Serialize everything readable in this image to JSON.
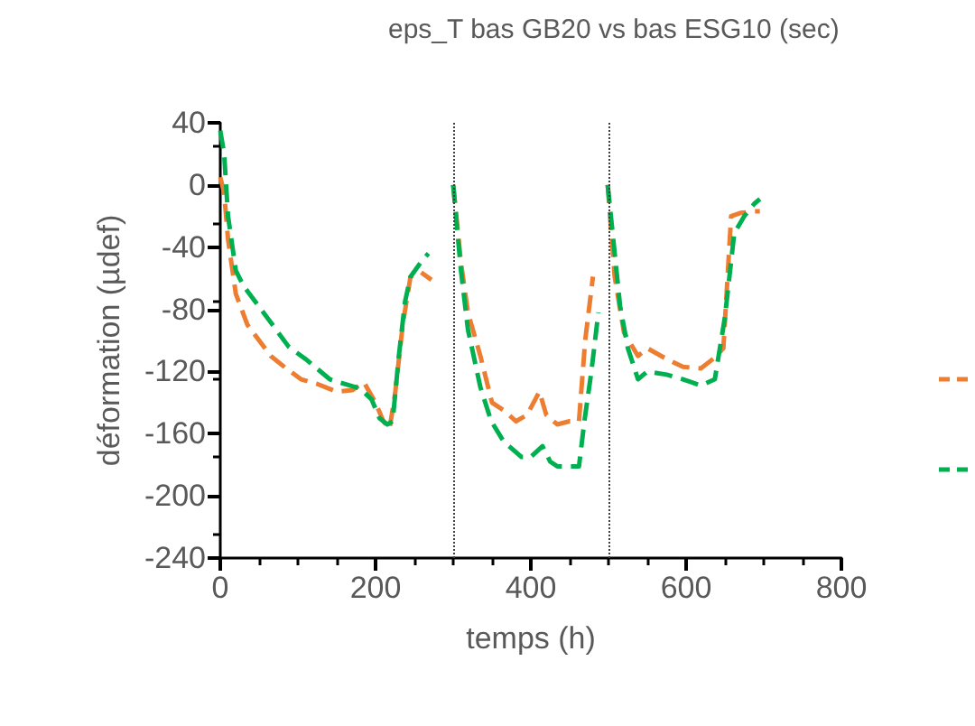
{
  "chart_data": {
    "type": "line",
    "title": "eps_T bas GB20 vs bas ESG10 (sec)",
    "xlabel": "temps (h)",
    "ylabel": "déformation (µdef)",
    "xlim": [
      0,
      800
    ],
    "xticks": [
      0,
      200,
      400,
      600,
      800
    ],
    "ylim": [
      -240,
      40
    ],
    "yticks": [
      -240,
      -200,
      -160,
      -120,
      -80,
      -40,
      0,
      40
    ],
    "grid": false,
    "line_style": "dashed",
    "marker": "none",
    "ref_lines": [
      {
        "axis": "x",
        "value": 300,
        "color": "#404040",
        "line_style": "dotted"
      },
      {
        "axis": "x",
        "value": 500,
        "color": "#404040",
        "line_style": "dotted"
      }
    ],
    "series": [
      {
        "color": "#ed7d31",
        "x": [
          0,
          5,
          10,
          20,
          35,
          50,
          65,
          85,
          104,
          125,
          150,
          170,
          185,
          200,
          210,
          218,
          225,
          235,
          245,
          258,
          272,
          285,
          300,
          310,
          319,
          335,
          350,
          365,
          381,
          395,
          411,
          420,
          434,
          450,
          462,
          470,
          480,
          490,
          499,
          508,
          520,
          538,
          550,
          575,
          596,
          619,
          637,
          648,
          658,
          670,
          688,
          695
        ],
        "values": [
          5,
          -5,
          -35,
          -70,
          -90,
          -100,
          -110,
          -118,
          -125,
          -128,
          -133,
          -132,
          -127,
          -140,
          -152,
          -157,
          -135,
          -90,
          -59,
          -56,
          -61,
          null,
          0,
          -50,
          -82,
          -110,
          -140,
          -145,
          -152,
          -148,
          -133,
          -148,
          -154,
          -152,
          -152,
          -100,
          -59,
          null,
          0,
          -59,
          -95,
          -110,
          -105,
          -112,
          -117,
          -118,
          -111,
          -105,
          -20,
          -18,
          -17,
          -17
        ]
      },
      {
        "color": "#00b050",
        "x": [
          0,
          5,
          10,
          20,
          30,
          42,
          60,
          88,
          110,
          141,
          160,
          180,
          195,
          205,
          215,
          222,
          230,
          238,
          245,
          258,
          268,
          285,
          300,
          310,
          319,
          335,
          349,
          365,
          388,
          400,
          415,
          425,
          434,
          450,
          462,
          469,
          478,
          487,
          492,
          499,
          515,
          525,
          538,
          550,
          575,
          596,
          619,
          637,
          650,
          662,
          675,
          688,
          695
        ],
        "values": [
          35,
          20,
          -20,
          -55,
          -65,
          -73,
          -85,
          -104,
          -112,
          -125,
          -128,
          -131,
          -138,
          -150,
          -154,
          -152,
          -110,
          -75,
          -59,
          -50,
          -44,
          null,
          0,
          -55,
          -93,
          -130,
          -152,
          -165,
          -175,
          -175,
          -168,
          -178,
          -181,
          -181,
          -181,
          -152,
          -120,
          -82,
          null,
          0,
          -78,
          -105,
          -125,
          -120,
          -122,
          -125,
          -129,
          -125,
          -85,
          -31,
          -20,
          -12,
          -9
        ]
      }
    ]
  }
}
